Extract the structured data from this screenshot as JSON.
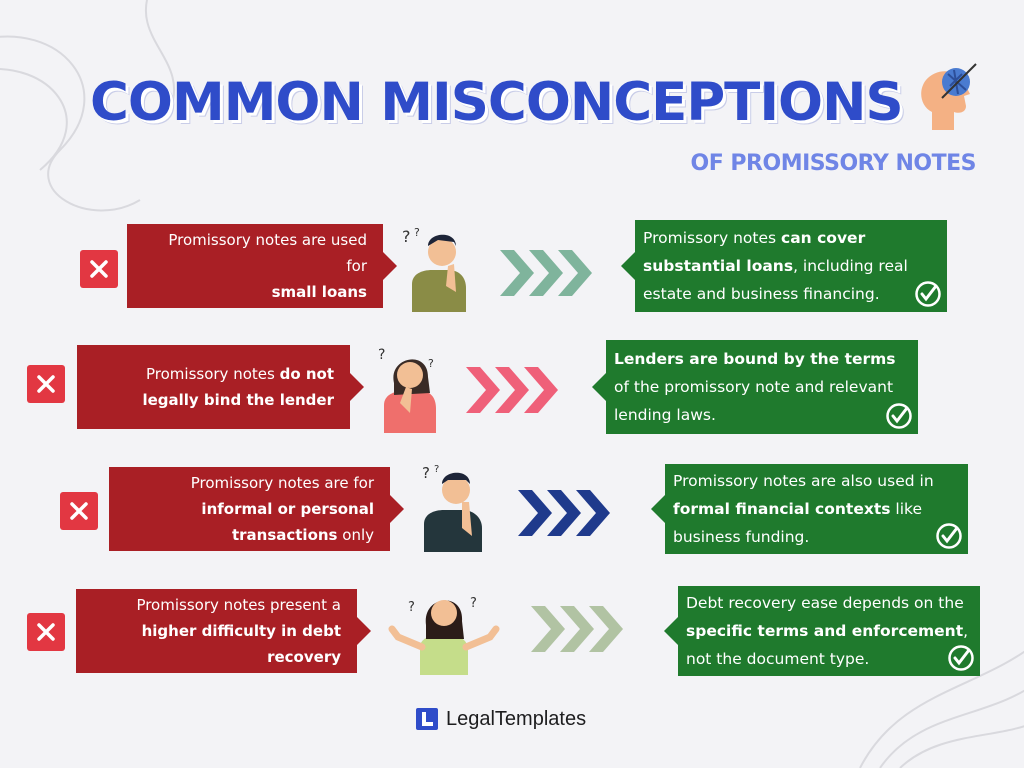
{
  "title": "COMMON MISCONCEPTIONS",
  "subtitle": "OF PROMISSORY NOTES",
  "footer": {
    "brand": "LegalTemplates"
  },
  "colors": {
    "title": "#2f4cc9",
    "subtitle": "#6f85e6",
    "myth_bg": "#a91f25",
    "fact_bg": "#1f7a2d",
    "x_badge": "#e23742",
    "arrows": [
      "#7fb49c",
      "#ef6079",
      "#1f3a8c",
      "#b1c3a3"
    ]
  },
  "icons": {
    "head": "brain-head-icon",
    "wrong": "x-icon",
    "right": "check-circle-icon",
    "pointer": "triple-chevron-icon"
  },
  "rows": [
    {
      "myth": {
        "a": "Promissory notes are used for",
        "b": "small loans",
        "c": ""
      },
      "fact": {
        "a": "Promissory notes ",
        "b": "can cover substantial loans",
        "c": ", including real estate and business financing."
      }
    },
    {
      "myth": {
        "a": "Promissory notes ",
        "b": "do not legally bind the lender",
        "c": ""
      },
      "fact": {
        "a": "",
        "b": "Lenders are bound by the terms",
        "c": " of the promissory note and relevant lending laws."
      }
    },
    {
      "myth": {
        "a": "Promissory notes are for ",
        "b": "informal or personal transactions",
        "c": " only"
      },
      "fact": {
        "a": "Promissory notes are also used in ",
        "b": "formal financial contexts",
        "c": " like business funding."
      }
    },
    {
      "myth": {
        "a": "Promissory notes present a ",
        "b": "higher difficulty in debt recovery",
        "c": ""
      },
      "fact": {
        "a": "Debt recovery ease depends on the ",
        "b": "specific terms and enforcement",
        "c": ", not the document type."
      }
    }
  ]
}
